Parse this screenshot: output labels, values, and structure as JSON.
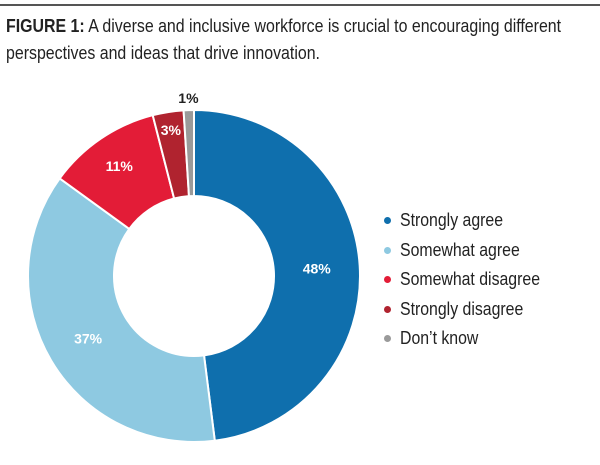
{
  "figure_label": "FIGURE 1:",
  "title": "A diverse and inclusive workforce is crucial to encouraging different perspectives and ideas that drive innovation.",
  "chart_data": {
    "type": "pie",
    "donut": true,
    "title": "FIGURE 1: A diverse and inclusive workforce is crucial to encouraging different perspectives and ideas that drive innovation.",
    "categories": [
      "Strongly agree",
      "Somewhat agree",
      "Somewhat disagree",
      "Strongly disagree",
      "Don’t know"
    ],
    "values": [
      48,
      37,
      11,
      3,
      1
    ],
    "labels": [
      "48%",
      "37%",
      "11%",
      "3%",
      "1%"
    ],
    "colors": [
      "#0f6fad",
      "#8ec9e1",
      "#e31c37",
      "#b0232f",
      "#9a9a9a"
    ],
    "legend_position": "right"
  }
}
